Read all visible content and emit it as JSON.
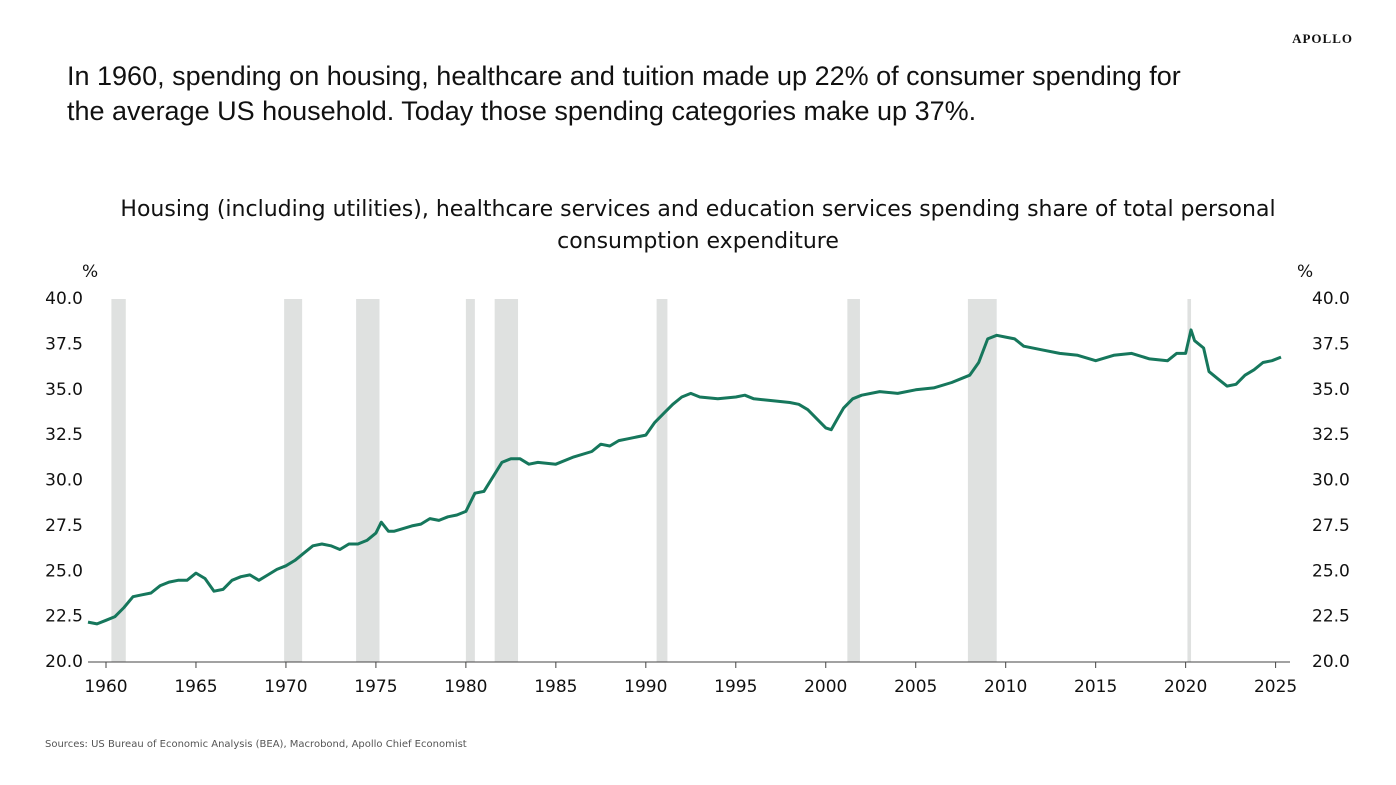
{
  "brand": "APOLLO",
  "headline": [
    "In 1960, spending on housing, healthcare and tuition made up 22% of consumer spending for",
    "the average US household. Today those spending categories make up 37%."
  ],
  "source": "Sources: US Bureau of Economic Analysis (BEA), Macrobond, Apollo Chief Economist",
  "chart_data": {
    "type": "line",
    "title": [
      "Housing (including utilities), healthcare services and education services spending share of total personal",
      "consumption expenditure"
    ],
    "y_label": "%",
    "y2_label": "%",
    "color": "#16775c",
    "shade_color": "#dfe1e0",
    "shaded_periods": [
      [
        1960.3,
        1961.1
      ],
      [
        1969.9,
        1970.9
      ],
      [
        1973.9,
        1975.2
      ],
      [
        1980.0,
        1980.5
      ],
      [
        1981.6,
        1982.9
      ],
      [
        1990.6,
        1991.2
      ],
      [
        2001.2,
        2001.9
      ],
      [
        2007.9,
        2009.5
      ],
      [
        2020.1,
        2020.3
      ]
    ],
    "x": [
      1959.0,
      1959.5,
      1960.0,
      1960.5,
      1961.0,
      1961.5,
      1962.0,
      1962.5,
      1963.0,
      1963.5,
      1964.0,
      1964.5,
      1965.0,
      1965.5,
      1966.0,
      1966.5,
      1967.0,
      1967.5,
      1968.0,
      1968.5,
      1969.0,
      1969.5,
      1970.0,
      1970.5,
      1971.0,
      1971.5,
      1972.0,
      1972.5,
      1973.0,
      1973.5,
      1974.0,
      1974.5,
      1975.0,
      1975.3,
      1975.7,
      1976.0,
      1977.0,
      1977.5,
      1978.0,
      1978.5,
      1979.0,
      1979.5,
      1980.0,
      1980.5,
      1981.0,
      1981.5,
      1982.0,
      1982.5,
      1983.0,
      1983.5,
      1984.0,
      1985.0,
      1986.0,
      1987.0,
      1987.5,
      1988.0,
      1988.5,
      1989.0,
      1990.0,
      1990.5,
      1991.0,
      1991.5,
      1992.0,
      1992.5,
      1993.0,
      1994.0,
      1995.0,
      1995.5,
      1996.0,
      1997.0,
      1998.0,
      1998.5,
      1999.0,
      1999.5,
      2000.0,
      2000.3,
      2000.7,
      2001.0,
      2001.5,
      2002.0,
      2003.0,
      2004.0,
      2005.0,
      2006.0,
      2007.0,
      2008.0,
      2008.5,
      2009.0,
      2009.5,
      2010.0,
      2010.5,
      2011.0,
      2012.0,
      2013.0,
      2014.0,
      2015.0,
      2016.0,
      2017.0,
      2018.0,
      2019.0,
      2019.5,
      2020.0,
      2020.3,
      2020.5,
      2021.0,
      2021.3,
      2021.8,
      2022.3,
      2022.8,
      2023.3,
      2023.8,
      2024.3,
      2024.8,
      2025.3
    ],
    "values": [
      22.2,
      22.1,
      22.3,
      22.5,
      23.0,
      23.6,
      23.7,
      23.8,
      24.2,
      24.4,
      24.5,
      24.5,
      24.9,
      24.6,
      23.9,
      24.0,
      24.5,
      24.7,
      24.8,
      24.5,
      24.8,
      25.1,
      25.3,
      25.6,
      26.0,
      26.4,
      26.5,
      26.4,
      26.2,
      26.5,
      26.5,
      26.7,
      27.1,
      27.7,
      27.2,
      27.2,
      27.5,
      27.6,
      27.9,
      27.8,
      28.0,
      28.1,
      28.3,
      29.3,
      29.4,
      30.2,
      31.0,
      31.2,
      31.2,
      30.9,
      31.0,
      30.9,
      31.3,
      31.6,
      32.0,
      31.9,
      32.2,
      32.3,
      32.5,
      33.2,
      33.7,
      34.2,
      34.6,
      34.8,
      34.6,
      34.5,
      34.6,
      34.7,
      34.5,
      34.4,
      34.3,
      34.2,
      33.9,
      33.4,
      32.9,
      32.8,
      33.5,
      34.0,
      34.5,
      34.7,
      34.9,
      34.8,
      35.0,
      35.1,
      35.4,
      35.8,
      36.5,
      37.8,
      38.0,
      37.9,
      37.8,
      37.4,
      37.2,
      37.0,
      36.9,
      36.6,
      36.9,
      37.0,
      36.7,
      36.6,
      37.0,
      37.0,
      38.3,
      37.7,
      37.3,
      36.0,
      35.6,
      35.2,
      35.3,
      35.8,
      36.1,
      36.5,
      36.6,
      36.8
    ],
    "xlim": [
      1959,
      2025.8
    ],
    "xticks": [
      1960,
      1965,
      1970,
      1975,
      1980,
      1985,
      1990,
      1995,
      2000,
      2005,
      2010,
      2015,
      2020,
      2025
    ],
    "ylim": [
      20,
      40
    ],
    "yticks": [
      {
        "value": 20,
        "label": "20.0"
      },
      {
        "value": 22.5,
        "label": "22.5"
      },
      {
        "value": 25,
        "label": "25.0"
      },
      {
        "value": 27.5,
        "label": "27.5"
      },
      {
        "value": 30,
        "label": "30.0"
      },
      {
        "value": 32.5,
        "label": "32.5"
      },
      {
        "value": 35,
        "label": "35.0"
      },
      {
        "value": 37.5,
        "label": "37.5"
      },
      {
        "value": 40,
        "label": "40.0"
      }
    ]
  }
}
